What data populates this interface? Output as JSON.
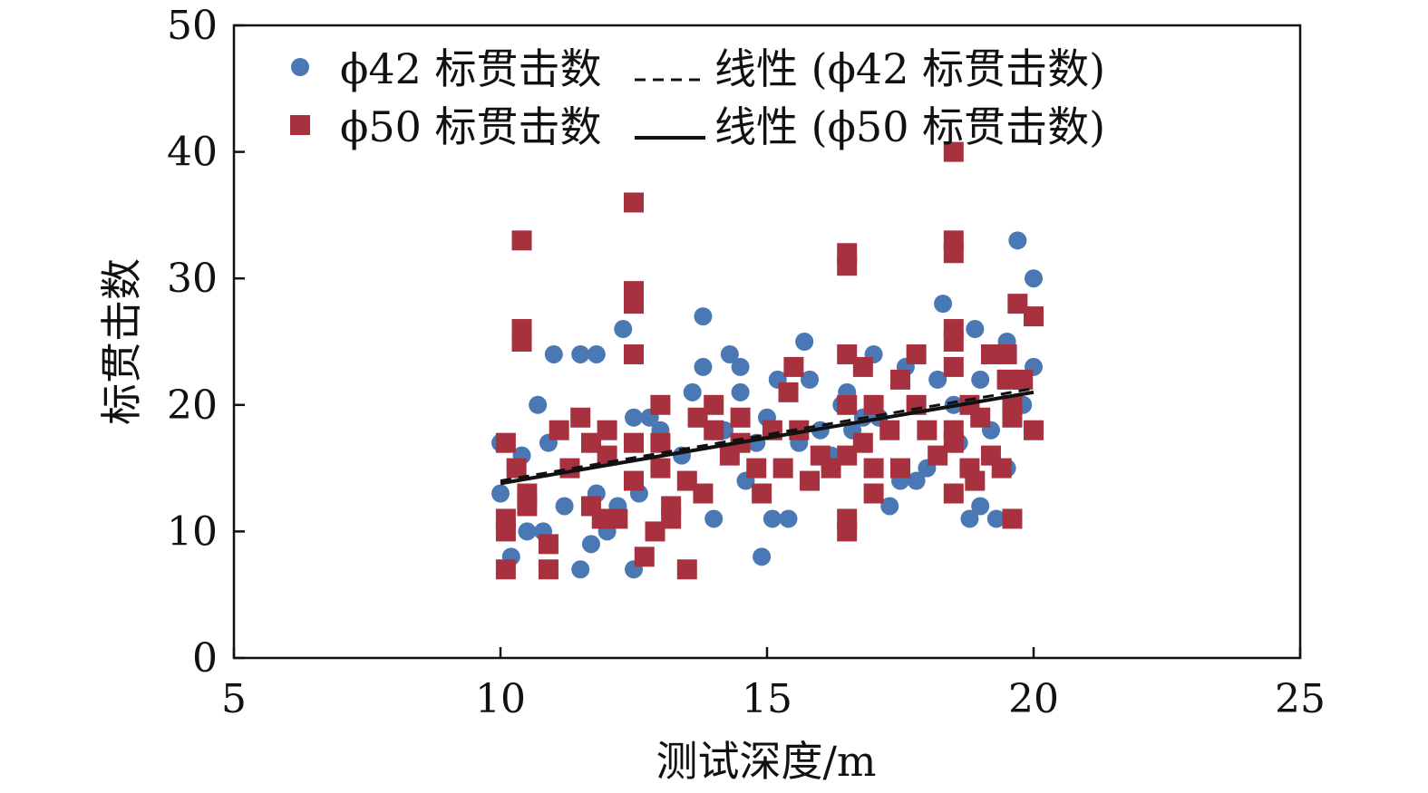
{
  "chart_data": {
    "type": "scatter",
    "xlabel": "测试深度/m",
    "ylabel": "标贯击数",
    "xlim": [
      5,
      25
    ],
    "ylim": [
      0,
      50
    ],
    "xticks": [
      5,
      10,
      15,
      20,
      25
    ],
    "yticks": [
      0,
      10,
      20,
      30,
      40,
      50
    ],
    "grid": false,
    "legend_position": "top-left",
    "series": [
      {
        "name": "ϕ42 标贯击数",
        "marker": "circle",
        "color": "#4a78b4",
        "points": [
          [
            10.0,
            17
          ],
          [
            10.0,
            13
          ],
          [
            10.2,
            8
          ],
          [
            10.4,
            16
          ],
          [
            10.5,
            10
          ],
          [
            10.7,
            20
          ],
          [
            10.8,
            10
          ],
          [
            10.9,
            17
          ],
          [
            11.0,
            24
          ],
          [
            11.2,
            12
          ],
          [
            11.5,
            7
          ],
          [
            11.5,
            24
          ],
          [
            11.7,
            9
          ],
          [
            11.8,
            24
          ],
          [
            11.8,
            13
          ],
          [
            12.0,
            10
          ],
          [
            12.2,
            12
          ],
          [
            12.3,
            26
          ],
          [
            12.5,
            19
          ],
          [
            12.5,
            7
          ],
          [
            12.6,
            13
          ],
          [
            12.8,
            19
          ],
          [
            13.0,
            18
          ],
          [
            13.2,
            11
          ],
          [
            13.4,
            16
          ],
          [
            13.6,
            21
          ],
          [
            13.8,
            27
          ],
          [
            13.8,
            23
          ],
          [
            14.0,
            11
          ],
          [
            14.2,
            18
          ],
          [
            14.3,
            24
          ],
          [
            14.5,
            23
          ],
          [
            14.5,
            21
          ],
          [
            14.6,
            14
          ],
          [
            14.8,
            17
          ],
          [
            14.9,
            8
          ],
          [
            15.0,
            19
          ],
          [
            15.1,
            11
          ],
          [
            15.2,
            22
          ],
          [
            15.4,
            11
          ],
          [
            15.6,
            17
          ],
          [
            15.7,
            25
          ],
          [
            15.8,
            22
          ],
          [
            16.0,
            18
          ],
          [
            16.2,
            16
          ],
          [
            16.4,
            20
          ],
          [
            16.5,
            21
          ],
          [
            16.6,
            18
          ],
          [
            16.8,
            19
          ],
          [
            17.0,
            24
          ],
          [
            17.1,
            19
          ],
          [
            17.3,
            12
          ],
          [
            17.5,
            14
          ],
          [
            17.6,
            23
          ],
          [
            17.8,
            14
          ],
          [
            18.0,
            15
          ],
          [
            18.2,
            22
          ],
          [
            18.3,
            28
          ],
          [
            18.5,
            20
          ],
          [
            18.6,
            17
          ],
          [
            18.8,
            11
          ],
          [
            18.9,
            26
          ],
          [
            19.0,
            12
          ],
          [
            19.0,
            22
          ],
          [
            19.2,
            18
          ],
          [
            19.3,
            11
          ],
          [
            19.5,
            25
          ],
          [
            19.5,
            15
          ],
          [
            19.7,
            33
          ],
          [
            19.8,
            20
          ],
          [
            20.0,
            30
          ],
          [
            20.0,
            23
          ]
        ]
      },
      {
        "name": "ϕ50 标贯击数",
        "marker": "square",
        "color": "#a8313f",
        "points": [
          [
            10.1,
            17
          ],
          [
            10.1,
            11
          ],
          [
            10.1,
            10
          ],
          [
            10.1,
            7
          ],
          [
            10.3,
            15
          ],
          [
            10.4,
            33
          ],
          [
            10.4,
            26
          ],
          [
            10.4,
            25
          ],
          [
            10.5,
            13
          ],
          [
            10.5,
            12
          ],
          [
            10.9,
            9
          ],
          [
            10.9,
            7
          ],
          [
            11.1,
            18
          ],
          [
            11.3,
            15
          ],
          [
            11.5,
            19
          ],
          [
            11.7,
            17
          ],
          [
            11.7,
            12
          ],
          [
            11.9,
            11
          ],
          [
            12.0,
            18
          ],
          [
            12.0,
            16
          ],
          [
            12.2,
            11
          ],
          [
            12.5,
            36
          ],
          [
            12.5,
            29
          ],
          [
            12.5,
            28
          ],
          [
            12.5,
            24
          ],
          [
            12.5,
            17
          ],
          [
            12.5,
            14
          ],
          [
            12.7,
            8
          ],
          [
            12.9,
            10
          ],
          [
            13.0,
            20
          ],
          [
            13.0,
            17
          ],
          [
            13.0,
            15
          ],
          [
            13.2,
            12
          ],
          [
            13.2,
            11
          ],
          [
            13.5,
            7
          ],
          [
            13.5,
            14
          ],
          [
            13.7,
            19
          ],
          [
            13.8,
            13
          ],
          [
            14.0,
            20
          ],
          [
            14.0,
            18
          ],
          [
            14.3,
            16
          ],
          [
            14.5,
            19
          ],
          [
            14.5,
            17
          ],
          [
            14.8,
            15
          ],
          [
            14.9,
            13
          ],
          [
            15.1,
            18
          ],
          [
            15.3,
            15
          ],
          [
            15.4,
            21
          ],
          [
            15.5,
            23
          ],
          [
            15.6,
            18
          ],
          [
            15.8,
            14
          ],
          [
            16.0,
            16
          ],
          [
            16.2,
            15
          ],
          [
            16.5,
            32
          ],
          [
            16.5,
            31
          ],
          [
            16.5,
            24
          ],
          [
            16.5,
            20
          ],
          [
            16.5,
            16
          ],
          [
            16.5,
            11
          ],
          [
            16.5,
            10
          ],
          [
            16.8,
            23
          ],
          [
            16.8,
            17
          ],
          [
            17.0,
            20
          ],
          [
            17.0,
            15
          ],
          [
            17.0,
            13
          ],
          [
            17.3,
            18
          ],
          [
            17.5,
            22
          ],
          [
            17.5,
            15
          ],
          [
            17.8,
            24
          ],
          [
            17.8,
            20
          ],
          [
            18.0,
            18
          ],
          [
            18.2,
            16
          ],
          [
            18.5,
            40
          ],
          [
            18.5,
            33
          ],
          [
            18.5,
            32
          ],
          [
            18.5,
            26
          ],
          [
            18.5,
            25
          ],
          [
            18.5,
            23
          ],
          [
            18.5,
            18
          ],
          [
            18.5,
            17
          ],
          [
            18.5,
            13
          ],
          [
            18.8,
            20
          ],
          [
            18.8,
            15
          ],
          [
            18.9,
            14
          ],
          [
            19.0,
            19
          ],
          [
            19.2,
            24
          ],
          [
            19.2,
            16
          ],
          [
            19.4,
            15
          ],
          [
            19.5,
            24
          ],
          [
            19.5,
            22
          ],
          [
            19.6,
            20
          ],
          [
            19.6,
            19
          ],
          [
            19.6,
            11
          ],
          [
            19.7,
            28
          ],
          [
            19.8,
            22
          ],
          [
            20.0,
            27
          ],
          [
            20.0,
            18
          ]
        ]
      }
    ],
    "trendlines": [
      {
        "name": "线性 (ϕ42 标贯击数)",
        "style": "dashed",
        "color": "#111111",
        "x": [
          10,
          20
        ],
        "y": [
          14.0,
          21.3
        ]
      },
      {
        "name": "线性 (ϕ50 标贯击数)",
        "style": "solid",
        "color": "#111111",
        "x": [
          10,
          20
        ],
        "y": [
          13.8,
          21.0
        ]
      }
    ]
  }
}
